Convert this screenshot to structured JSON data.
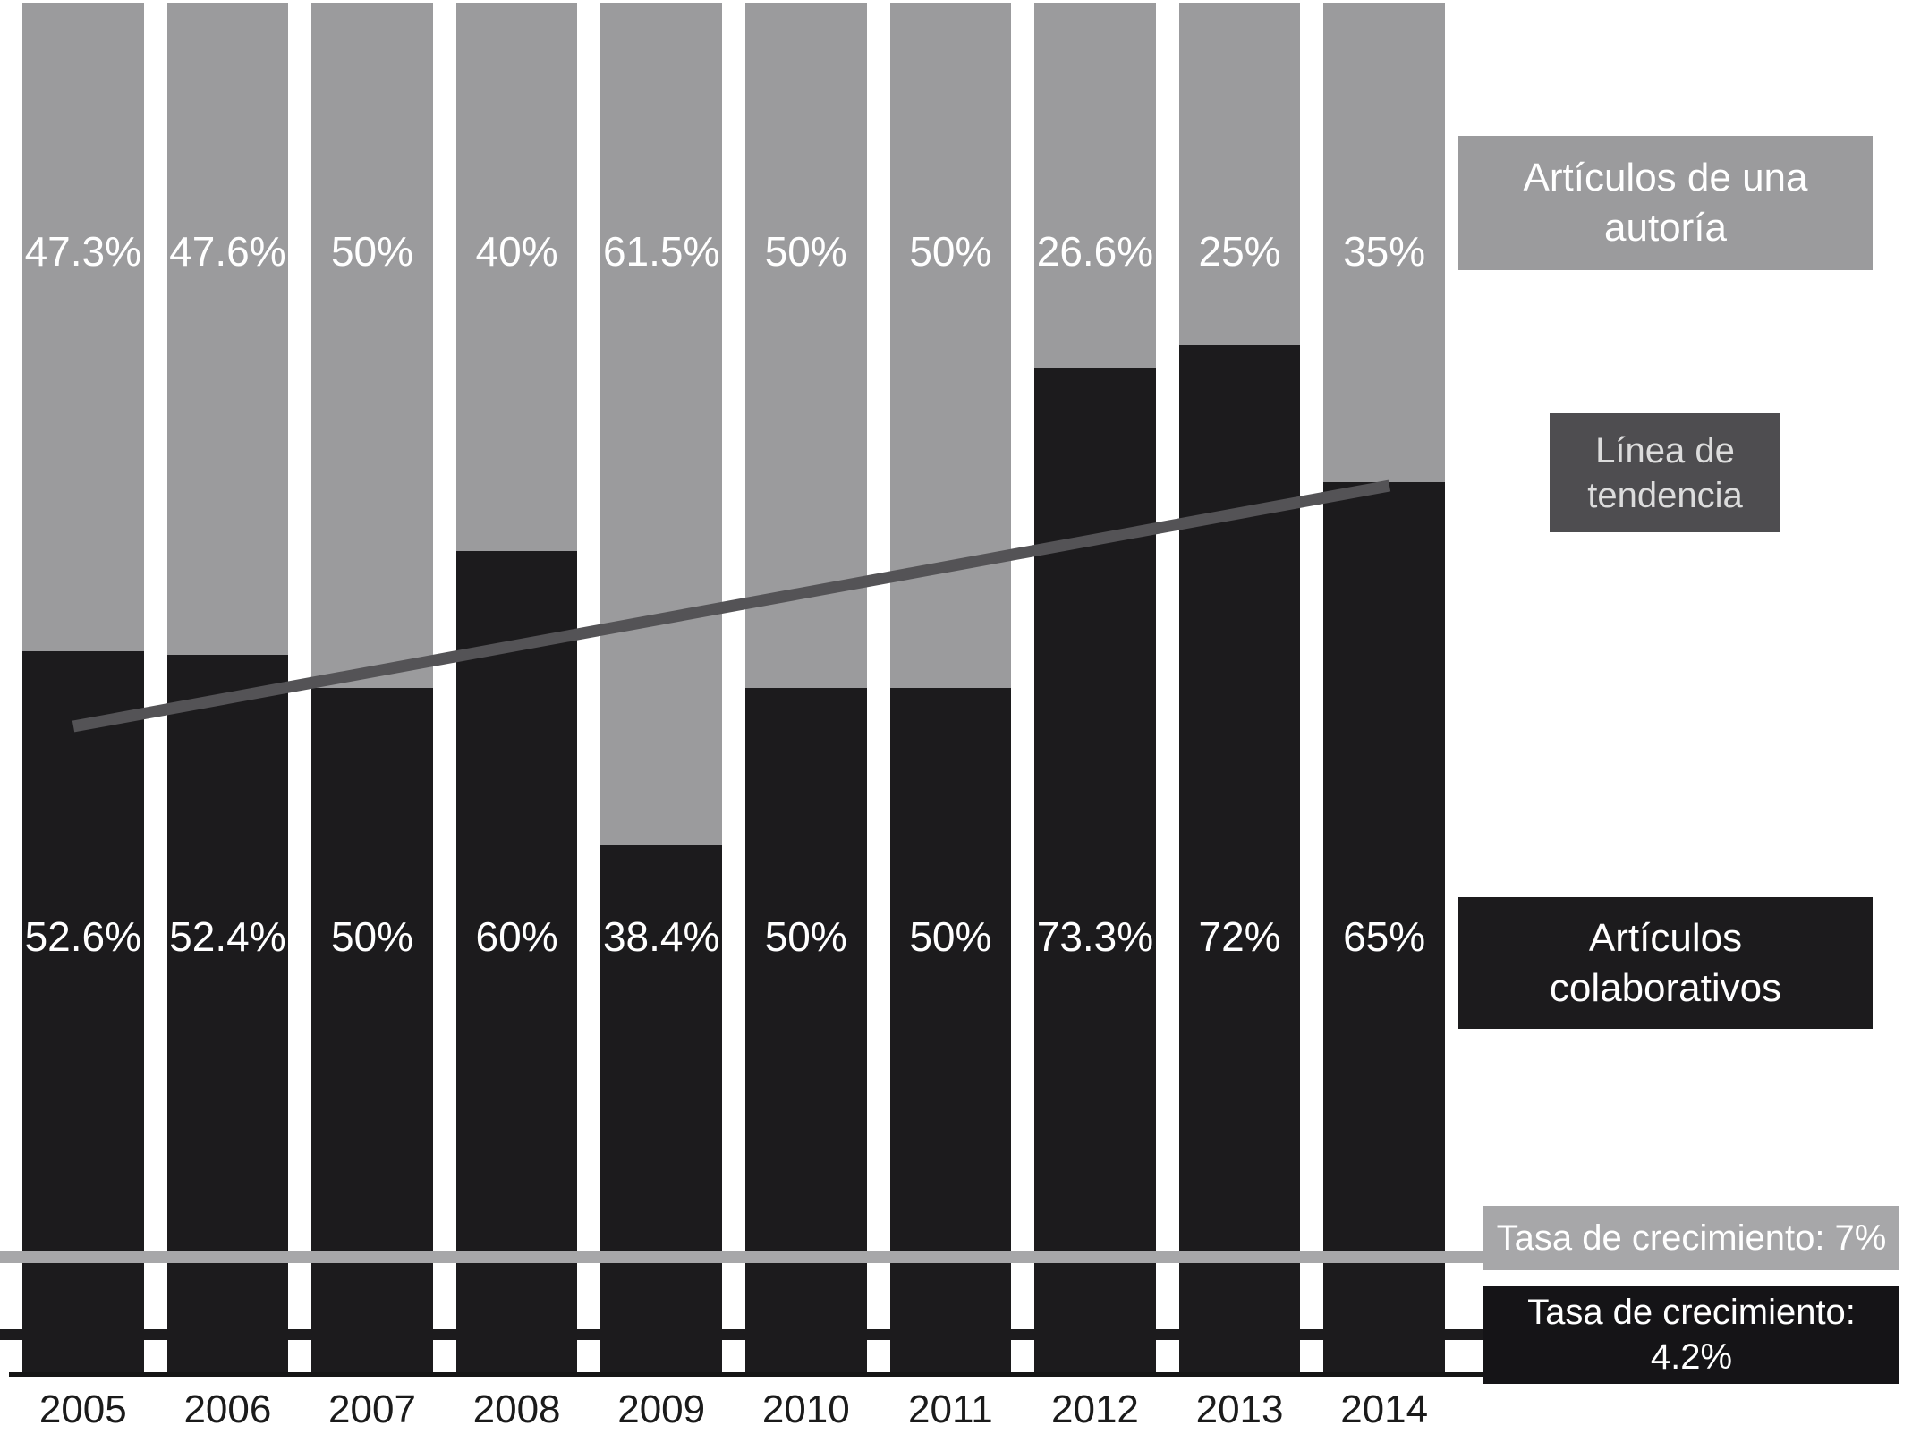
{
  "chart_data": {
    "type": "bar",
    "variant": "stacked-100-percent",
    "categories": [
      "2005",
      "2006",
      "2007",
      "2008",
      "2009",
      "2010",
      "2011",
      "2012",
      "2013",
      "2014"
    ],
    "series": [
      {
        "name": "Artículos colaborativos",
        "position": "bottom",
        "color": "#1c1b1d",
        "values": [
          52.6,
          52.4,
          50,
          60,
          38.4,
          50,
          50,
          73.3,
          72,
          65
        ],
        "labels": [
          "52.6%",
          "52.4%",
          "50%",
          "60%",
          "38.4%",
          "50%",
          "50%",
          "73.3%",
          "72%",
          "65%"
        ]
      },
      {
        "name": "Artículos de una autoría",
        "position": "top",
        "color": "#9b9b9d",
        "values": [
          47.3,
          47.6,
          50,
          40,
          61.5,
          50,
          50,
          26.6,
          25,
          35
        ],
        "labels": [
          "47.3%",
          "47.6%",
          "50%",
          "40%",
          "61.5%",
          "50%",
          "50%",
          "26.6%",
          "25%",
          "35%"
        ]
      }
    ],
    "trend_line": {
      "name": "Línea de tendencia",
      "color": "#545356",
      "direction": "rising-left-to-right"
    },
    "reference_lines": [
      {
        "name": "Tasa de crecimiento: 7%",
        "color": "#a7a7a9"
      },
      {
        "name": "Tasa de crecimiento: 4.2%",
        "color": "#1c1b1d"
      }
    ],
    "xlabel": "",
    "ylabel": "",
    "ylim": [
      0,
      100
    ],
    "grid": false,
    "legend_position": "right",
    "value_label_color": "#ffffff",
    "axis_label_color": "#1b1b1b"
  },
  "legend": {
    "single_author": {
      "line1": "Artículos de una",
      "line2": "autoría",
      "bg": "#9b9b9d"
    },
    "trend": {
      "line1": "Línea de",
      "line2": "tendencia",
      "bg": "#4e4d50"
    },
    "collaborative": {
      "line1": "Artículos",
      "line2": "colaborativos",
      "bg": "#1c1b1d"
    },
    "growth_gray": {
      "text": "Tasa de crecimiento: 7%",
      "bg": "#a7a7a9"
    },
    "growth_black": {
      "line1": "Tasa de crecimiento:",
      "line2": "4.2%",
      "bg": "#151417"
    }
  }
}
